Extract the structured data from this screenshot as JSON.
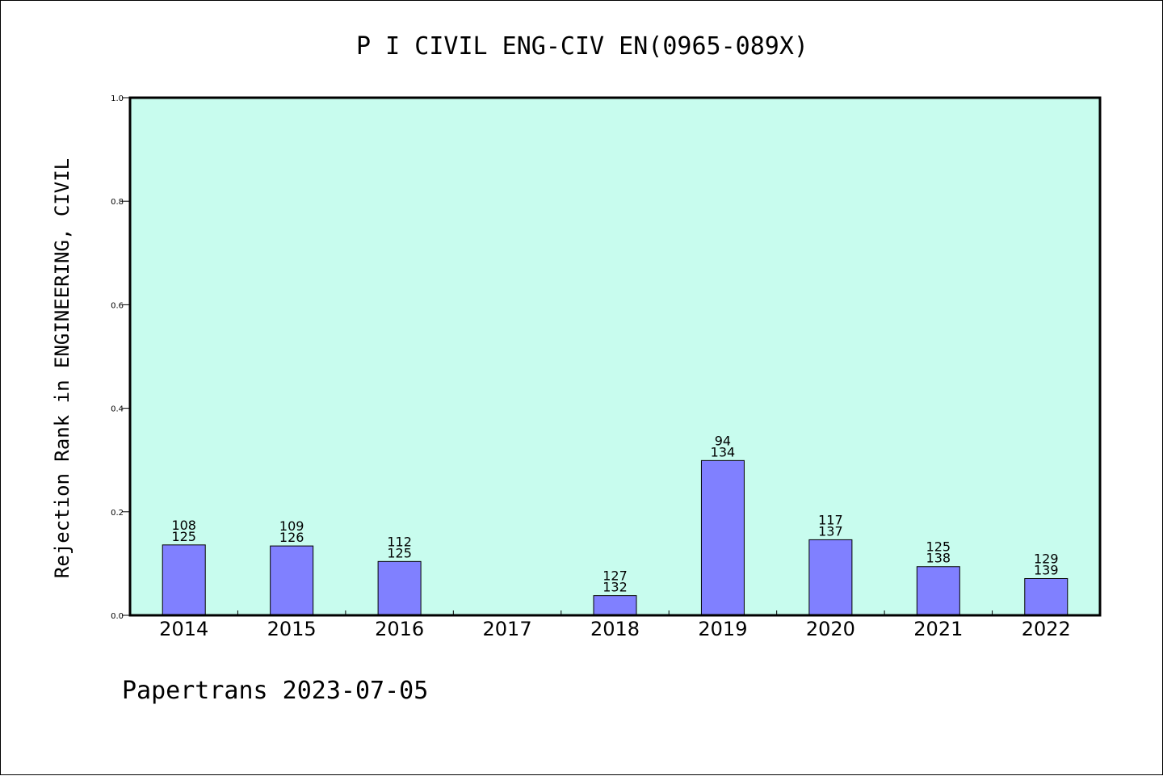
{
  "chart_data": {
    "type": "bar",
    "title": "P I CIVIL ENG-CIV EN(0965-089X)",
    "xlabel": "",
    "ylabel": "Rejection Rank in ENGINEERING, CIVIL",
    "ylim": [
      0,
      1.0
    ],
    "yticks": [
      "0.0",
      "0.2",
      "0.4",
      "0.6",
      "0.8",
      "1.0"
    ],
    "categories": [
      "2014",
      "2015",
      "2016",
      "2017",
      "2018",
      "2019",
      "2020",
      "2021",
      "2022"
    ],
    "values": [
      0.136,
      0.134,
      0.104,
      null,
      0.038,
      0.299,
      0.146,
      0.094,
      0.071
    ],
    "bar_labels": [
      [
        "108",
        "125"
      ],
      [
        "109",
        "126"
      ],
      [
        "112",
        "125"
      ],
      null,
      [
        "127",
        "132"
      ],
      [
        "94",
        "134"
      ],
      [
        "117",
        "137"
      ],
      [
        "125",
        "138"
      ],
      [
        "129",
        "139"
      ]
    ],
    "grid": false,
    "plot_background": "#c8fcee",
    "bar_color": "#8080ff"
  },
  "footer": "Papertrans 2023-07-05"
}
